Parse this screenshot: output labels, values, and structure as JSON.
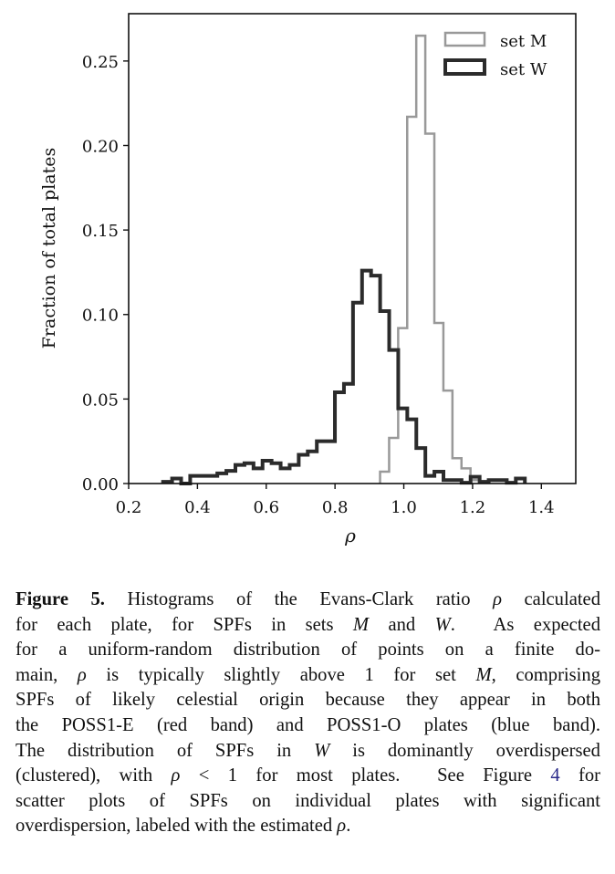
{
  "chart_data": {
    "type": "histogram-step",
    "xlabel": "ρ",
    "ylabel": "Fraction of total plates",
    "xlim": [
      0.2,
      1.5
    ],
    "ylim": [
      0,
      0.278
    ],
    "xticks": [
      "0.2",
      "0.4",
      "0.6",
      "0.8",
      "1.0",
      "1.2",
      "1.4"
    ],
    "yticks": [
      "0.00",
      "0.05",
      "0.10",
      "0.15",
      "0.20",
      "0.25"
    ],
    "grid": false,
    "legend_position": "top-right",
    "bin_width": 0.0263,
    "series": [
      {
        "name": "set M",
        "color": "#999999",
        "bin_start": 0.931,
        "values": [
          0.007,
          0.027,
          0.092,
          0.217,
          0.265,
          0.207,
          0.095,
          0.055,
          0.015,
          0.009,
          0.002
        ]
      },
      {
        "name": "set W",
        "color": "#2b2b2b",
        "bin_start": 0.3,
        "values": [
          0.001,
          0.003,
          0,
          0.0045,
          0.0045,
          0.0045,
          0.006,
          0.0075,
          0.011,
          0.012,
          0.009,
          0.0135,
          0.012,
          0.009,
          0.011,
          0.017,
          0.019,
          0.025,
          0.025,
          0.054,
          0.059,
          0.107,
          0.126,
          0.123,
          0.102,
          0.079,
          0.0445,
          0.038,
          0.021,
          0.0045,
          0.007,
          0.002,
          0.002,
          0.0005,
          0.004,
          0.001,
          0.002,
          0.002,
          0.0005,
          0.003
        ]
      }
    ]
  },
  "caption": {
    "lines": [
      [
        {
          "t": "Figure 5.",
          "s": "b"
        },
        {
          "t": " Histograms of the Evans-Clark ratio "
        },
        {
          "t": "ρ",
          "s": "i"
        },
        {
          "t": " calculated"
        }
      ],
      [
        {
          "t": "for each plate, for SPFs in sets "
        },
        {
          "t": "M",
          "s": "i"
        },
        {
          "t": " and "
        },
        {
          "t": "W",
          "s": "i"
        },
        {
          "t": ".  As expected"
        }
      ],
      [
        {
          "t": "for a uniform-random distribution of points on a finite do-"
        }
      ],
      [
        {
          "t": "main, "
        },
        {
          "t": "ρ",
          "s": "i"
        },
        {
          "t": " is typically slightly above 1 for set "
        },
        {
          "t": "M",
          "s": "i"
        },
        {
          "t": ", comprising"
        }
      ],
      [
        {
          "t": "SPFs of likely celestial origin because they appear in both"
        }
      ],
      [
        {
          "t": "the POSS1-E (red band) and POSS1-O plates (blue band)."
        }
      ],
      [
        {
          "t": "The distribution of SPFs in "
        },
        {
          "t": "W",
          "s": "i"
        },
        {
          "t": " is dominantly overdispersed"
        }
      ],
      [
        {
          "t": "(clustered), with "
        },
        {
          "t": "ρ",
          "s": "i"
        },
        {
          "t": " < 1 for most plates.  See Figure "
        },
        {
          "t": "4",
          "s": "link"
        },
        {
          "t": " for"
        }
      ],
      [
        {
          "t": "scatter plots of SPFs on individual plates with significant"
        }
      ],
      [
        {
          "t": "overdispersion, labeled with the estimated "
        },
        {
          "t": "ρ",
          "s": "i"
        },
        {
          "t": "."
        }
      ]
    ]
  }
}
